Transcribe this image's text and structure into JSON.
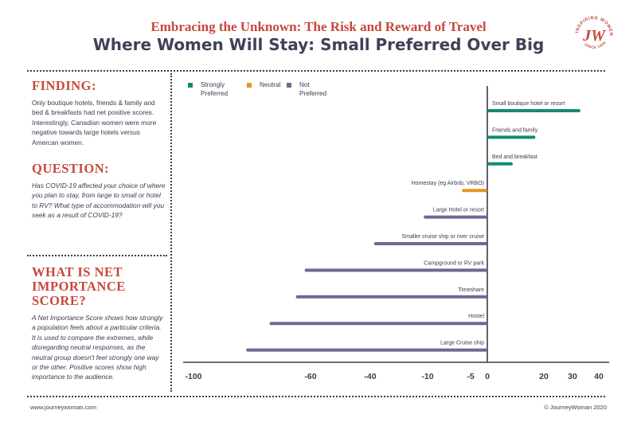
{
  "header": {
    "supertitle": "Embracing the Unknown: The Risk and Reward of Travel",
    "title": "Where Women Will Stay: Small Preferred Over Big"
  },
  "logo": {
    "ring_text": "INSPIRING WOMEN",
    "monogram": "JW",
    "since_text": "SINCE 1994",
    "color": "#c8473b"
  },
  "sidebar": {
    "finding_heading": "FINDING:",
    "finding_text": "Only boutique hotels, friends & family and bed & breakfasts had net positive scores. Interestingly, Canadian women were more negative towards large hotels versus Amercan women.",
    "question_heading": "QUESTION:",
    "question_text": "Has COVID-19 affected your choice of where you plan to stay, from large to small or hotel to RV? What type of accommodation will you seek as a result of COVID-19?",
    "nis_heading_1": "WHAT IS NET",
    "nis_heading_2": "IMPORTANCE SCORE?",
    "nis_text": "A Net Importance Score shows how strongly a population feels about a particular criteria. It is used to compare the extremes, while disregarding neutral responses, as the neutral group doesn't feel strongly one way or the other. Positive scores show high importance to the audience."
  },
  "legend": {
    "strongly_1": "Strongly",
    "strongly_2": "Preferred",
    "neutral": "Neutral",
    "not_1": "Not",
    "not_2": "Preferred"
  },
  "footer": {
    "left": "www.journeywoman.com",
    "right": "© JourneyWoman 2020"
  },
  "chart_data": {
    "type": "bar",
    "orientation": "horizontal",
    "categories": [
      "Small boutique hotel or resort",
      "Friends and family",
      "Bed and breakfast",
      "Homestay (eg Airbnb, VRBO)",
      "Large Hotel or resort",
      "Smaller cruise ship or river cruise",
      "Campground or RV park",
      "Timeshare",
      "Hostel",
      "Large Cruise ship"
    ],
    "values": [
      33,
      17,
      9,
      -6,
      -12,
      -38,
      -62,
      -65,
      -74,
      -82
    ],
    "value_groups": [
      "Strongly Preferred",
      "Strongly Preferred",
      "Strongly Preferred",
      "Neutral",
      "Not Preferred",
      "Not Preferred",
      "Not Preferred",
      "Not Preferred",
      "Not Preferred",
      "Not Preferred"
    ],
    "group_colors": {
      "Strongly Preferred": "#168a73",
      "Neutral": "#e5951e",
      "Not Preferred": "#6f6796"
    },
    "x_ticks": [
      -100,
      -60,
      -40,
      -10,
      -5,
      0,
      20,
      30,
      40
    ],
    "x_tick_labels": [
      "-100",
      "-60",
      "-40",
      "-10",
      "-5",
      "0",
      "20",
      "30",
      "40"
    ],
    "xlim": [
      -100,
      40
    ],
    "legend_position": "top-left",
    "grid": false
  }
}
